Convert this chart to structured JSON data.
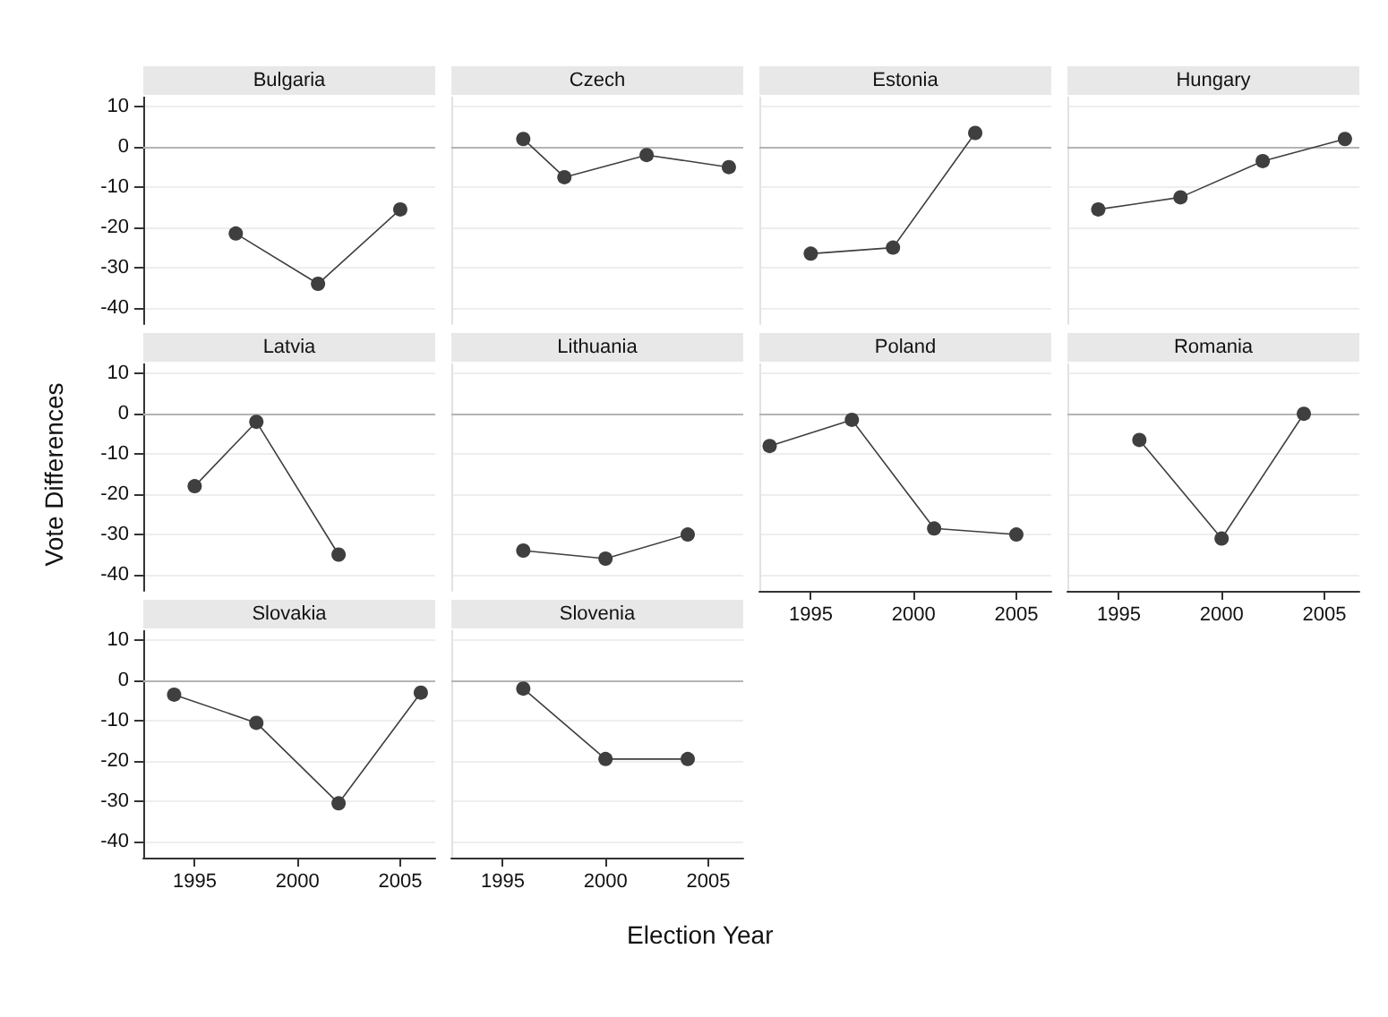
{
  "chart_data": [
    {
      "type": "line",
      "title": "Bulgaria",
      "x": [
        1997,
        2001,
        2005
      ],
      "series": [
        {
          "color": "#3f3f3f",
          "values": [
            -21.5,
            -34,
            -15.5
          ]
        }
      ],
      "xlim": [
        1992.5,
        2006.7
      ],
      "ylim": [
        -44,
        12.5
      ],
      "xticks": [
        1995,
        2000,
        2005
      ],
      "yticks": [
        10,
        0,
        -10,
        -20,
        -30,
        -40
      ],
      "tick_labels": "y",
      "grid": "y",
      "marker": "circle",
      "ref_lines": [
        {
          "axis": "y",
          "value": 0,
          "color": "#b4b4b4"
        }
      ]
    },
    {
      "type": "line",
      "title": "Czech",
      "x": [
        1996,
        1998,
        2002,
        2006
      ],
      "series": [
        {
          "color": "#3f3f3f",
          "values": [
            2,
            -7.5,
            -2,
            -5
          ]
        }
      ],
      "xlim": [
        1992.5,
        2006.7
      ],
      "ylim": [
        -44,
        12.5
      ],
      "xticks": [
        1995,
        2000,
        2005
      ],
      "yticks": [
        10,
        0,
        -10,
        -20,
        -30,
        -40
      ],
      "tick_labels": false,
      "grid": "y",
      "marker": "circle",
      "ref_lines": [
        {
          "axis": "y",
          "value": 0,
          "color": "#b4b4b4"
        }
      ]
    },
    {
      "type": "line",
      "title": "Estonia",
      "x": [
        1995,
        1999,
        2003
      ],
      "series": [
        {
          "color": "#3f3f3f",
          "values": [
            -26.5,
            -25,
            3.5
          ]
        }
      ],
      "xlim": [
        1992.5,
        2006.7
      ],
      "ylim": [
        -44,
        12.5
      ],
      "xticks": [
        1995,
        2000,
        2005
      ],
      "yticks": [
        10,
        0,
        -10,
        -20,
        -30,
        -40
      ],
      "tick_labels": false,
      "grid": "y",
      "marker": "circle",
      "ref_lines": [
        {
          "axis": "y",
          "value": 0,
          "color": "#b4b4b4"
        }
      ]
    },
    {
      "type": "line",
      "title": "Hungary",
      "x": [
        1994,
        1998,
        2002,
        2006
      ],
      "series": [
        {
          "color": "#3f3f3f",
          "values": [
            -15.5,
            -12.5,
            -3.5,
            2
          ]
        }
      ],
      "xlim": [
        1992.5,
        2006.7
      ],
      "ylim": [
        -44,
        12.5
      ],
      "xticks": [
        1995,
        2000,
        2005
      ],
      "yticks": [
        10,
        0,
        -10,
        -20,
        -30,
        -40
      ],
      "tick_labels": false,
      "grid": "y",
      "marker": "circle",
      "ref_lines": [
        {
          "axis": "y",
          "value": 0,
          "color": "#b4b4b4"
        }
      ]
    },
    {
      "type": "line",
      "title": "Latvia",
      "ylabel": "Vote Differences",
      "x": [
        1995,
        1998,
        2002
      ],
      "series": [
        {
          "color": "#3f3f3f",
          "values": [
            -18,
            -2,
            -35
          ]
        }
      ],
      "xlim": [
        1992.5,
        2006.7
      ],
      "ylim": [
        -44,
        12.5
      ],
      "xticks": [
        1995,
        2000,
        2005
      ],
      "yticks": [
        10,
        0,
        -10,
        -20,
        -30,
        -40
      ],
      "tick_labels": "y",
      "grid": "y",
      "marker": "circle",
      "ref_lines": [
        {
          "axis": "y",
          "value": 0,
          "color": "#b4b4b4"
        }
      ]
    },
    {
      "type": "line",
      "title": "Lithuania",
      "x": [
        1996,
        2000,
        2004
      ],
      "series": [
        {
          "color": "#3f3f3f",
          "values": [
            -34,
            -36,
            -30
          ]
        }
      ],
      "xlim": [
        1992.5,
        2006.7
      ],
      "ylim": [
        -44,
        12.5
      ],
      "xticks": [
        1995,
        2000,
        2005
      ],
      "yticks": [
        10,
        0,
        -10,
        -20,
        -30,
        -40
      ],
      "tick_labels": false,
      "grid": "y",
      "marker": "circle",
      "ref_lines": [
        {
          "axis": "y",
          "value": 0,
          "color": "#b4b4b4"
        }
      ]
    },
    {
      "type": "line",
      "title": "Poland",
      "x": [
        1993,
        1997,
        2001,
        2005
      ],
      "series": [
        {
          "color": "#3f3f3f",
          "values": [
            -8,
            -1.5,
            -28.5,
            -30
          ]
        }
      ],
      "xlim": [
        1992.5,
        2006.7
      ],
      "ylim": [
        -44,
        12.5
      ],
      "xticks": [
        1995,
        2000,
        2005
      ],
      "yticks": [
        10,
        0,
        -10,
        -20,
        -30,
        -40
      ],
      "tick_labels": "x",
      "grid": "y",
      "marker": "circle",
      "ref_lines": [
        {
          "axis": "y",
          "value": 0,
          "color": "#b4b4b4"
        }
      ]
    },
    {
      "type": "line",
      "title": "Romania",
      "x": [
        1996,
        2000,
        2004
      ],
      "series": [
        {
          "color": "#3f3f3f",
          "values": [
            -6.5,
            -31,
            0
          ]
        }
      ],
      "xlim": [
        1992.5,
        2006.7
      ],
      "ylim": [
        -44,
        12.5
      ],
      "xticks": [
        1995,
        2000,
        2005
      ],
      "yticks": [
        10,
        0,
        -10,
        -20,
        -30,
        -40
      ],
      "tick_labels": "x",
      "grid": "y",
      "marker": "circle",
      "ref_lines": [
        {
          "axis": "y",
          "value": 0,
          "color": "#b4b4b4"
        }
      ]
    },
    {
      "type": "line",
      "title": "Slovakia",
      "x": [
        1994,
        1998,
        2002,
        2006
      ],
      "series": [
        {
          "color": "#3f3f3f",
          "values": [
            -3.5,
            -10.5,
            -30.5,
            -3
          ]
        }
      ],
      "xlim": [
        1992.5,
        2006.7
      ],
      "ylim": [
        -44,
        12.5
      ],
      "xticks": [
        1995,
        2000,
        2005
      ],
      "yticks": [
        10,
        0,
        -10,
        -20,
        -30,
        -40
      ],
      "grid": "y",
      "marker": "circle",
      "ref_lines": [
        {
          "axis": "y",
          "value": 0,
          "color": "#b4b4b4"
        }
      ]
    },
    {
      "type": "line",
      "title": "Slovenia",
      "xlabel": "Election Year",
      "x": [
        1996,
        2000,
        2004
      ],
      "series": [
        {
          "color": "#3f3f3f",
          "values": [
            -2,
            -19.5,
            -19.5
          ]
        }
      ],
      "xlim": [
        1992.5,
        2006.7
      ],
      "ylim": [
        -44,
        12.5
      ],
      "xticks": [
        1995,
        2000,
        2005
      ],
      "yticks": [
        10,
        0,
        -10,
        -20,
        -30,
        -40
      ],
      "tick_labels": "x",
      "grid": "y",
      "marker": "circle",
      "ref_lines": [
        {
          "axis": "y",
          "value": 0,
          "color": "#b4b4b4"
        }
      ]
    }
  ]
}
